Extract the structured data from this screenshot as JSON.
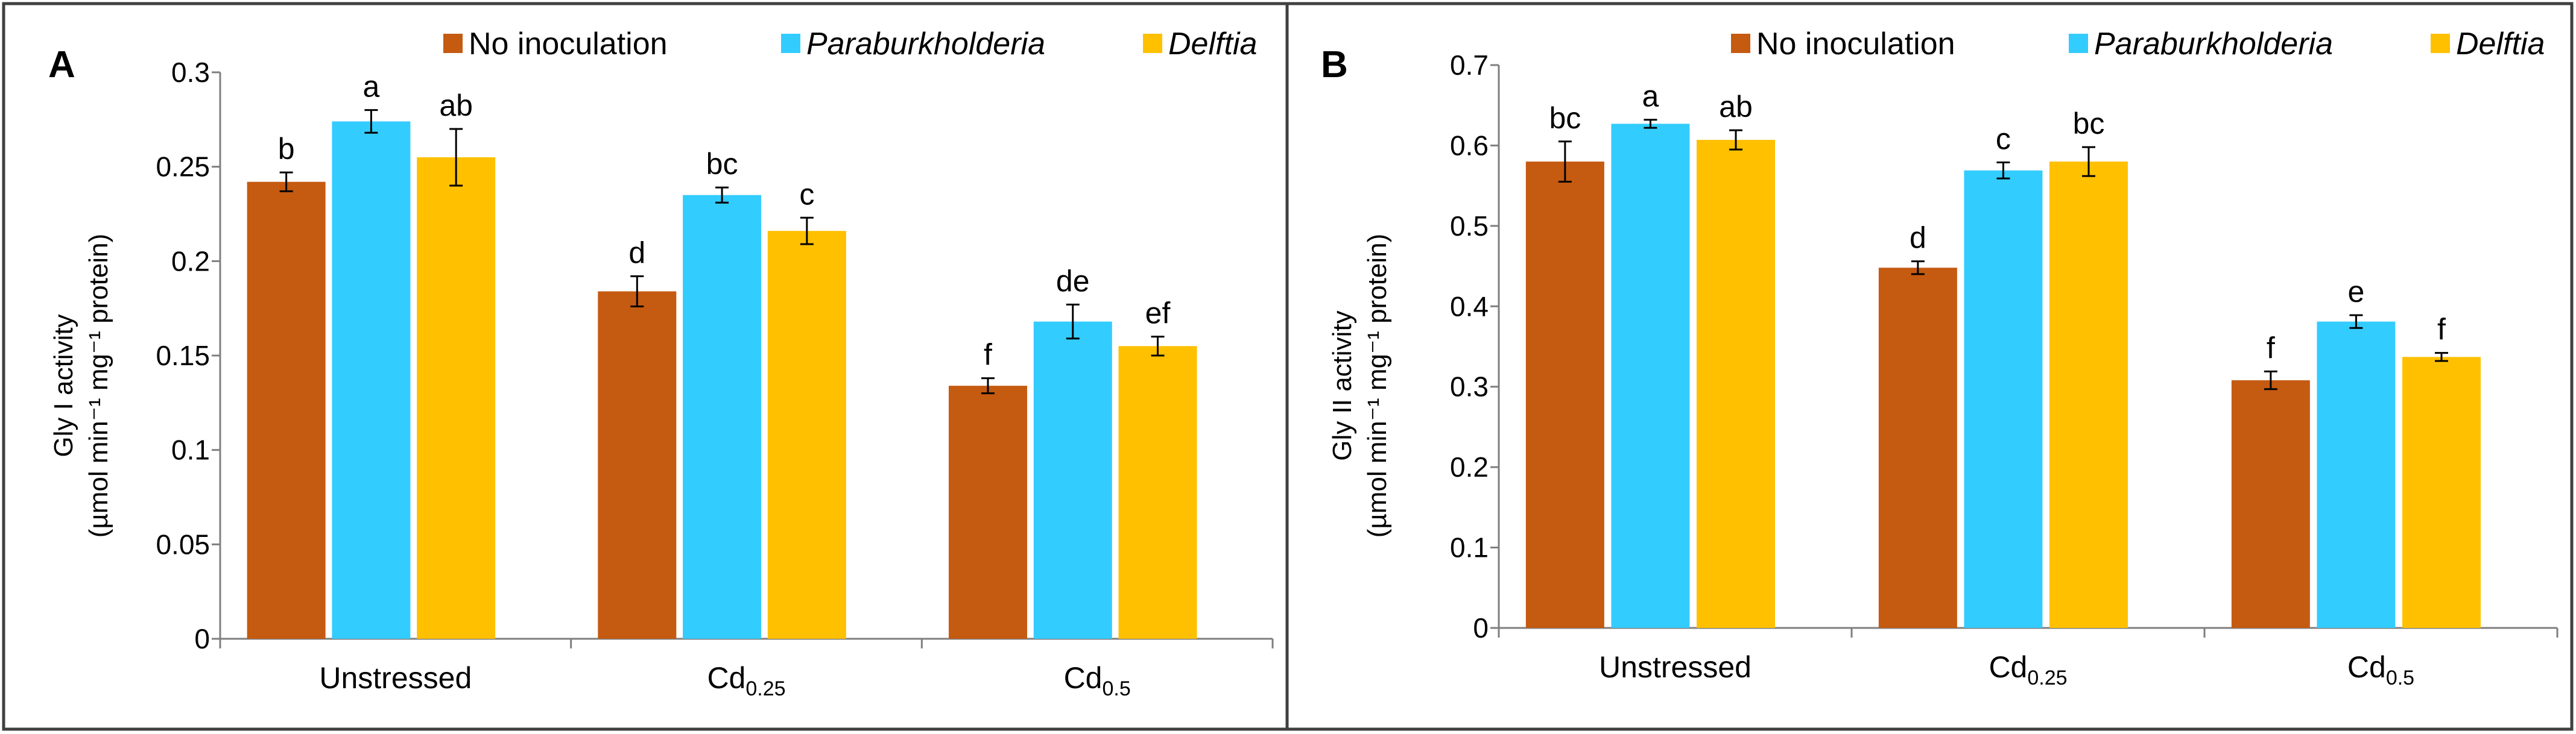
{
  "colors": {
    "no_inoculation": "#C55A11",
    "paraburkholderia": "#33CCFF",
    "delftia": "#FFC000",
    "axis": "#7F7F7F",
    "border": "#404040"
  },
  "legend": [
    {
      "label": "No inoculation",
      "italic": false,
      "color_key": "no_inoculation"
    },
    {
      "label": "Paraburkholderia",
      "italic": true,
      "color_key": "paraburkholderia"
    },
    {
      "label": "Delftia",
      "italic": true,
      "color_key": "delftia"
    }
  ],
  "panels": [
    {
      "letter": "A",
      "ylabel_line1": "Gly I activity",
      "ylabel_line2": "(µmol min⁻¹ mg⁻¹ protein)"
    },
    {
      "letter": "B",
      "ylabel_line1": "Gly II activity",
      "ylabel_line2": "(µmol min⁻¹ mg⁻¹ protein)"
    }
  ],
  "chart_data": [
    {
      "type": "bar",
      "title": "A",
      "ylabel": "Gly I activity (µmol min⁻¹ mg⁻¹ protein)",
      "xlabel": "",
      "categories": [
        {
          "base": "Unstressed",
          "sub": ""
        },
        {
          "base": "Cd",
          "sub": "0.25"
        },
        {
          "base": "Cd",
          "sub": "0.5"
        }
      ],
      "ylim": [
        0,
        0.3
      ],
      "yticks": [
        "0",
        "0.05",
        "0.1",
        "0.15",
        "0.2",
        "0.25",
        "0.3"
      ],
      "ytick_values": [
        0,
        0.05,
        0.1,
        0.15,
        0.2,
        0.25,
        0.3
      ],
      "series": [
        {
          "name": "No inoculation",
          "values": [
            0.242,
            0.184,
            0.134
          ],
          "errors": [
            0.005,
            0.008,
            0.004
          ],
          "letters": [
            "b",
            "d",
            "f"
          ]
        },
        {
          "name": "Paraburkholderia",
          "values": [
            0.274,
            0.235,
            0.168
          ],
          "errors": [
            0.006,
            0.004,
            0.009
          ],
          "letters": [
            "a",
            "bc",
            "de"
          ]
        },
        {
          "name": "Delftia",
          "values": [
            0.255,
            0.216,
            0.155
          ],
          "errors": [
            0.015,
            0.007,
            0.005
          ],
          "letters": [
            "ab",
            "c",
            "ef"
          ]
        }
      ]
    },
    {
      "type": "bar",
      "title": "B",
      "ylabel": "Gly II activity (µmol min⁻¹ mg⁻¹ protein)",
      "xlabel": "",
      "categories": [
        {
          "base": "Unstressed",
          "sub": ""
        },
        {
          "base": "Cd",
          "sub": "0.25"
        },
        {
          "base": "Cd",
          "sub": "0.5"
        }
      ],
      "ylim": [
        0,
        0.7
      ],
      "yticks": [
        "0",
        "0.1",
        "0.2",
        "0.3",
        "0.4",
        "0.5",
        "0.6",
        "0.7"
      ],
      "ytick_values": [
        0,
        0.1,
        0.2,
        0.3,
        0.4,
        0.5,
        0.6,
        0.7
      ],
      "series": [
        {
          "name": "No inoculation",
          "values": [
            0.58,
            0.448,
            0.308
          ],
          "errors": [
            0.025,
            0.008,
            0.011
          ],
          "letters": [
            "bc",
            "d",
            "f"
          ]
        },
        {
          "name": "Paraburkholderia",
          "values": [
            0.627,
            0.569,
            0.381
          ],
          "errors": [
            0.005,
            0.01,
            0.008
          ],
          "letters": [
            "a",
            "c",
            "e"
          ]
        },
        {
          "name": "Delftia",
          "values": [
            0.607,
            0.58,
            0.337
          ],
          "errors": [
            0.012,
            0.018,
            0.005
          ],
          "letters": [
            "ab",
            "bc",
            "f"
          ]
        }
      ]
    }
  ]
}
